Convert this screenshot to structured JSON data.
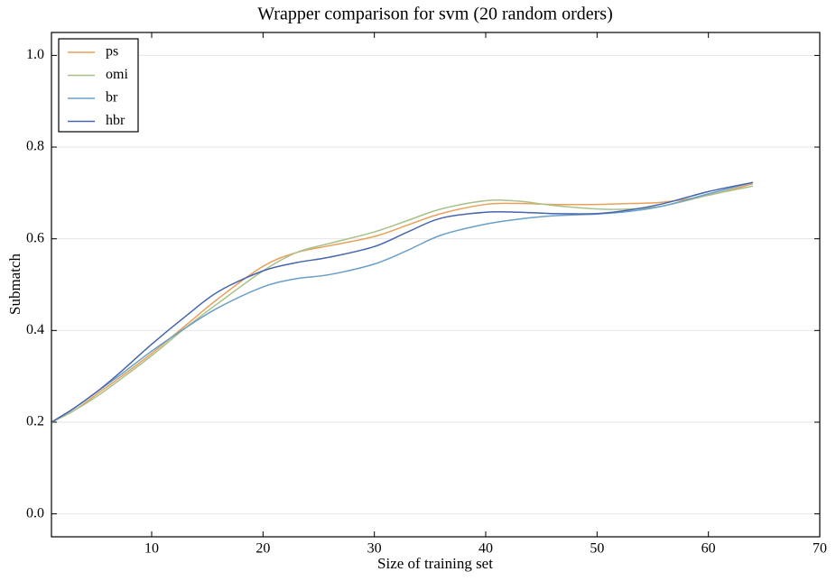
{
  "chart_data": {
    "type": "line",
    "title": "Wrapper comparison for svm (20 random orders)",
    "x_label": "Size of training set",
    "y_label": "Submatch",
    "x": [
      1,
      3,
      5,
      7,
      10,
      13,
      16,
      20,
      23,
      26,
      30,
      33,
      36,
      40,
      43,
      46,
      50,
      53,
      56,
      60,
      64
    ],
    "series": [
      {
        "name": "ps",
        "color": "#e9a15a",
        "values": [
          0.2,
          0.225,
          0.26,
          0.295,
          0.35,
          0.41,
          0.47,
          0.54,
          0.57,
          0.585,
          0.605,
          0.63,
          0.655,
          0.675,
          0.677,
          0.675,
          0.675,
          0.677,
          0.68,
          0.695,
          0.72
        ]
      },
      {
        "name": "omi",
        "color": "#a8c18a",
        "values": [
          0.2,
          0.225,
          0.255,
          0.29,
          0.345,
          0.405,
          0.46,
          0.53,
          0.57,
          0.59,
          0.615,
          0.64,
          0.665,
          0.683,
          0.682,
          0.673,
          0.665,
          0.665,
          0.672,
          0.695,
          0.715
        ]
      },
      {
        "name": "br",
        "color": "#6a9fc8",
        "values": [
          0.2,
          0.23,
          0.265,
          0.3,
          0.355,
          0.405,
          0.45,
          0.495,
          0.513,
          0.522,
          0.545,
          0.575,
          0.608,
          0.632,
          0.643,
          0.65,
          0.654,
          0.66,
          0.672,
          0.698,
          0.723
        ]
      },
      {
        "name": "hbr",
        "color": "#4565ad",
        "values": [
          0.2,
          0.23,
          0.265,
          0.305,
          0.37,
          0.43,
          0.485,
          0.53,
          0.548,
          0.56,
          0.583,
          0.615,
          0.645,
          0.658,
          0.658,
          0.655,
          0.655,
          0.663,
          0.677,
          0.703,
          0.723
        ]
      }
    ],
    "xlim": [
      1,
      70
    ],
    "xticks": [
      10,
      20,
      30,
      40,
      50,
      60,
      70
    ],
    "ylim": [
      -0.05,
      1.05
    ],
    "yticks": [
      {
        "value": 0,
        "label": "0.0"
      },
      0.2,
      0.4,
      0.6,
      0.8,
      {
        "value": 1,
        "label": "1.0"
      }
    ],
    "grid": true,
    "legend": "upper left"
  }
}
